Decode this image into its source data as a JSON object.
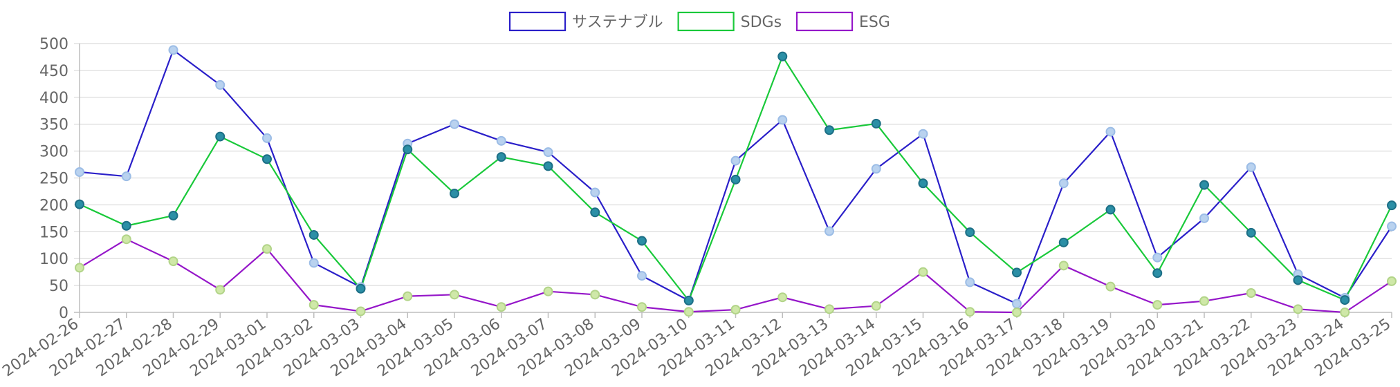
{
  "chart_data": {
    "type": "line",
    "title": "",
    "xlabel": "",
    "ylabel": "",
    "ylim": [
      0,
      500
    ],
    "yticks": [
      0,
      50,
      100,
      150,
      200,
      250,
      300,
      350,
      400,
      450,
      500
    ],
    "grid": true,
    "legend_position": "top-center",
    "categories": [
      "2024-02-26",
      "2024-02-27",
      "2024-02-28",
      "2024-02-29",
      "2024-03-01",
      "2024-03-02",
      "2024-03-03",
      "2024-03-04",
      "2024-03-05",
      "2024-03-06",
      "2024-03-07",
      "2024-03-08",
      "2024-03-09",
      "2024-03-10",
      "2024-03-11",
      "2024-03-12",
      "2024-03-13",
      "2024-03-14",
      "2024-03-15",
      "2024-03-16",
      "2024-03-17",
      "2024-03-18",
      "2024-03-19",
      "2024-03-20",
      "2024-03-21",
      "2024-03-22",
      "2024-03-23",
      "2024-03-24",
      "2024-03-25"
    ],
    "series": [
      {
        "name": "サステナブル",
        "color": "#2a1fc9",
        "marker_fill": "#b9d2ef",
        "marker_stroke": "#9cbde6",
        "values": [
          261,
          253,
          488,
          423,
          324,
          92,
          47,
          314,
          350,
          319,
          298,
          223,
          68,
          22,
          282,
          358,
          151,
          267,
          332,
          56,
          16,
          240,
          336,
          102,
          175,
          270,
          71,
          27,
          160
        ]
      },
      {
        "name": "SDGs",
        "color": "#19c93a",
        "marker_fill": "#2b8fa6",
        "marker_stroke": "#1d6f86",
        "values": [
          201,
          161,
          180,
          327,
          285,
          144,
          44,
          303,
          221,
          289,
          272,
          186,
          133,
          22,
          247,
          476,
          339,
          351,
          240,
          149,
          74,
          130,
          191,
          73,
          237,
          148,
          60,
          23,
          199
        ]
      },
      {
        "name": "ESG",
        "color": "#9516c9",
        "marker_fill": "#cfe8a8",
        "marker_stroke": "#b2d488",
        "values": [
          83,
          136,
          95,
          42,
          118,
          14,
          2,
          30,
          33,
          10,
          39,
          33,
          10,
          1,
          5,
          28,
          6,
          12,
          75,
          1,
          0,
          87,
          48,
          14,
          21,
          36,
          6,
          0,
          58
        ]
      }
    ]
  }
}
